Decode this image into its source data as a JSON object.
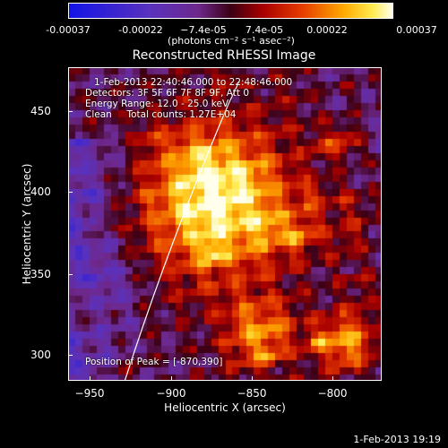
{
  "colorbar": {
    "ticks": [
      "-0.00037",
      "-0.00022",
      "−7.4e-05",
      "7.4e-05",
      "0.00022",
      "0.00037"
    ],
    "units": "(photons cm⁻² s⁻¹ asec⁻²)"
  },
  "title": "Reconstructed RHESSI Image",
  "info": {
    "time_range": "1-Feb-2013 22:40:46.000 to 22:48:46.000",
    "detectors": "Detectors: 3F 5F 6F 7F 8F 9F, Att 0",
    "energy": "Energy Range: 12.0 - 25.0 keV",
    "clean": "Clean     Total counts: 1.27E+04"
  },
  "peak": "Position of Peak = [-870,390]",
  "axes": {
    "xlabel": "Heliocentric X (arcsec)",
    "ylabel": "Heliocentric Y (arcsec)",
    "xticks": [
      "−950",
      "−900",
      "−850",
      "−800"
    ],
    "yticks": [
      "450",
      "400",
      "350",
      "300"
    ]
  },
  "footer": "1-Feb-2013 19:19"
}
